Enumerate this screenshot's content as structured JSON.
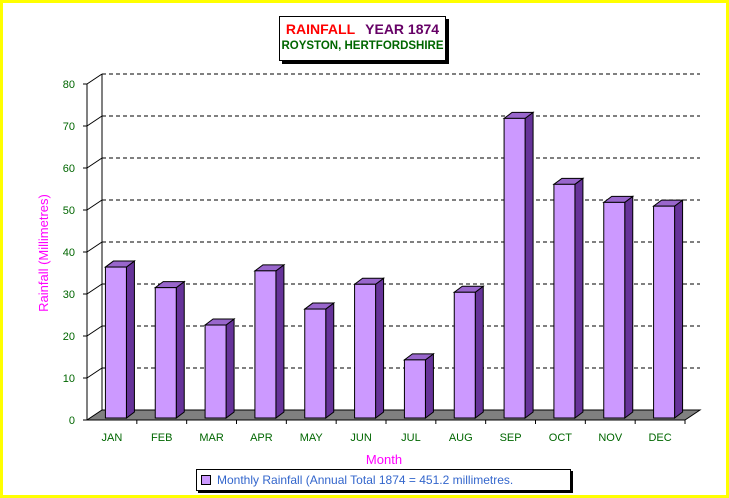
{
  "chart_data": {
    "type": "bar",
    "title_part1": "RAINFALL",
    "title_part2": "YEAR 1874",
    "subtitle": "ROYSTON, HERTFORDSHIRE",
    "categories": [
      "JAN",
      "FEB",
      "MAR",
      "APR",
      "MAY",
      "JUN",
      "JUL",
      "AUG",
      "SEP",
      "OCT",
      "NOV",
      "DEC"
    ],
    "series": [
      {
        "name": "Monthly Rainfall (Annual Total 1874 = 451.2 millimetres.",
        "values": [
          35.7,
          30.8,
          21.9,
          34.8,
          25.7,
          31.6,
          13.6,
          29.7,
          71.1,
          55.4,
          51.1,
          50.2
        ]
      }
    ],
    "xlabel": "Month",
    "ylabel": "Rainfall (Millimetres)",
    "ylim": [
      0,
      80
    ],
    "yticks": [
      "0",
      "10",
      "20",
      "30",
      "40",
      "50",
      "60",
      "70",
      "80"
    ],
    "grid": true,
    "legend_position": "bottom",
    "colors": {
      "bar_front": "#cc99ff",
      "bar_side": "#663399",
      "bar_top": "#9966cc",
      "floor": "#808080",
      "tick_label": "#006600",
      "axis_title": "#ff00ff",
      "legend_text": "#3366cc",
      "frame": "#ffff00"
    }
  }
}
